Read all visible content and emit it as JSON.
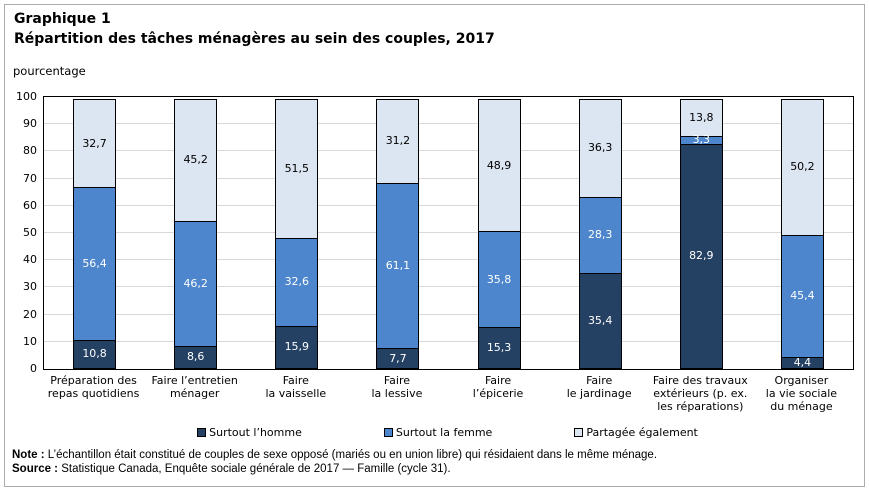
{
  "title": {
    "line1": "Graphique 1",
    "line2": "Répartition des tâches ménagères au sein des couples, 2017"
  },
  "chart_data": {
    "type": "bar",
    "stacked": true,
    "title": "Répartition des tâches ménagères au sein des couples, 2017",
    "ylabel": "pourcentage",
    "ylim": [
      0,
      100
    ],
    "ytick_step": 10,
    "grid": true,
    "legend_position": "bottom",
    "decimal_separator": ",",
    "categories": [
      [
        "Préparation des",
        "repas quotidiens"
      ],
      [
        "Faire l’entretien",
        "ménager"
      ],
      [
        "Faire",
        "la vaisselle"
      ],
      [
        "Faire",
        "la lessive"
      ],
      [
        "Faire",
        "l’épicerie"
      ],
      [
        "Faire",
        "le jardinage"
      ],
      [
        "Faire des travaux",
        "extérieurs (p. ex.",
        "les réparations)"
      ],
      [
        "Organiser",
        "la vie sociale",
        "du ménage"
      ]
    ],
    "series": [
      {
        "name": "Surtout l’homme",
        "color": "#244063",
        "label_color": "#FFFFFF",
        "values": [
          10.8,
          8.6,
          15.9,
          7.7,
          15.3,
          35.4,
          82.9,
          4.4
        ]
      },
      {
        "name": "Surtout la femme",
        "color": "#4D86CC",
        "label_color": "#FFFFFF",
        "values": [
          56.4,
          46.2,
          32.6,
          61.1,
          35.8,
          28.3,
          3.3,
          45.4
        ]
      },
      {
        "name": "Partagée également",
        "color": "#DCE5F2",
        "label_color": "#000000",
        "values": [
          32.7,
          45.2,
          51.5,
          31.2,
          48.9,
          36.3,
          13.8,
          50.2
        ]
      }
    ]
  },
  "note": {
    "label": "Note :",
    "text": " L’échantillon était constitué de couples de sexe opposé (mariés ou en union libre) qui résidaient dans le même ménage."
  },
  "source": {
    "label": "Source :",
    "text": " Statistique Canada, Enquête sociale générale de 2017 — Famille (cycle 31)."
  }
}
